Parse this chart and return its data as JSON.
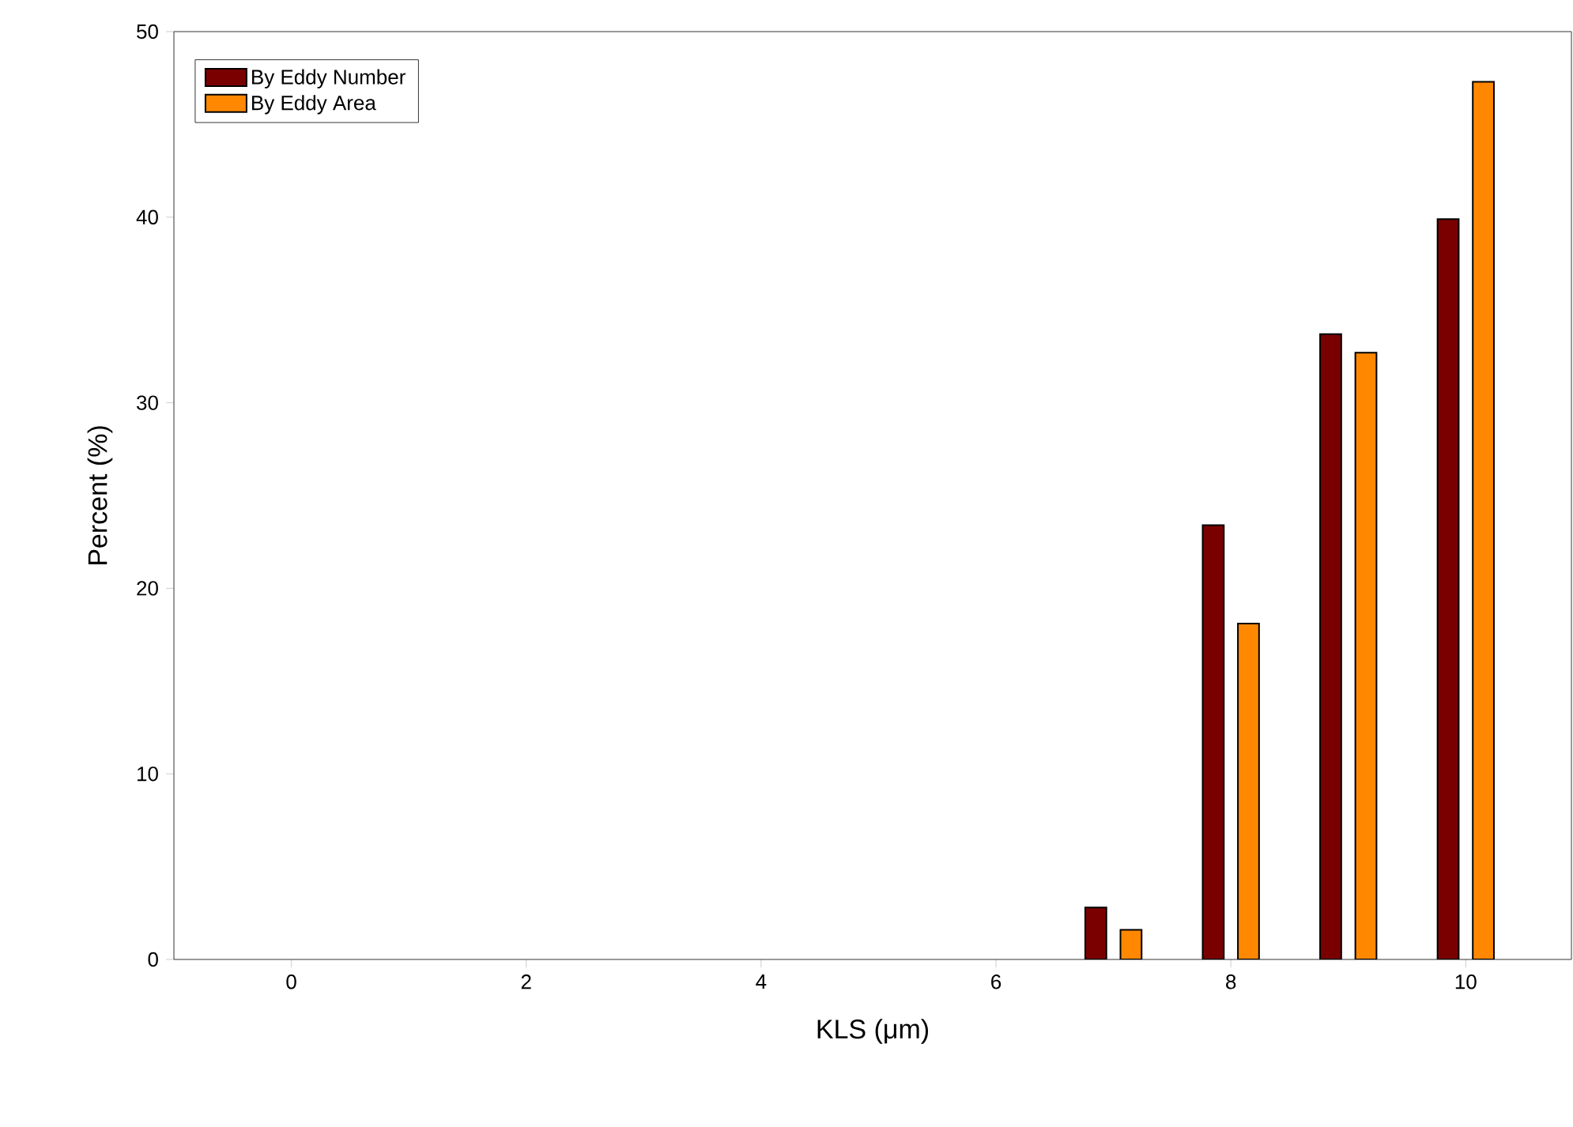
{
  "chart_data": {
    "type": "bar",
    "xlabel": "KLS (μm)",
    "ylabel": "Percent (%)",
    "x": [
      7,
      8,
      9,
      10
    ],
    "series": [
      {
        "name": "By Eddy Number",
        "color": "#7a0000",
        "values": [
          2.8,
          23.4,
          33.7,
          39.9
        ]
      },
      {
        "name": "By Eddy Area",
        "color": "#ff8800",
        "values": [
          1.6,
          18.1,
          32.7,
          47.3
        ]
      }
    ],
    "xlim": [
      -1,
      10.9
    ],
    "ylim": [
      0,
      50
    ],
    "xticks": [
      0,
      2,
      4,
      6,
      8,
      10
    ],
    "yticks": [
      0,
      10,
      20,
      30,
      40,
      50
    ],
    "grid": false,
    "legend": "top left"
  }
}
